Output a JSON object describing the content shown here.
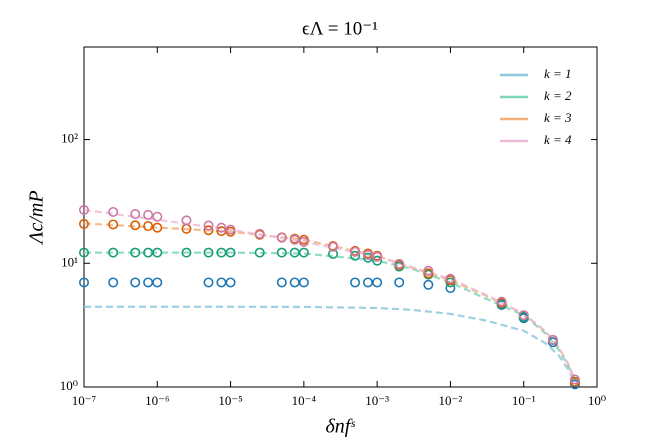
{
  "chart_data": {
    "type": "scatter",
    "title": "ϵΛ = 10⁻¹",
    "xlabel": "δnfˢ",
    "ylabel": "Λc/mP",
    "xscale": "log",
    "yscale": "log",
    "xlim": [
      1e-07,
      1
    ],
    "ylim": [
      1,
      560
    ],
    "xticks": [
      {
        "value": 1e-07,
        "label": "10⁻⁷"
      },
      {
        "value": 1e-06,
        "label": "10⁻⁶"
      },
      {
        "value": 1e-05,
        "label": "10⁻⁵"
      },
      {
        "value": 0.0001,
        "label": "10⁻⁴"
      },
      {
        "value": 0.001,
        "label": "10⁻³"
      },
      {
        "value": 0.01,
        "label": "10⁻²"
      },
      {
        "value": 0.1,
        "label": "10⁻¹"
      },
      {
        "value": 1,
        "label": "10⁰"
      }
    ],
    "yticks": [
      {
        "value": 1,
        "label": "10⁰"
      },
      {
        "value": 10,
        "label": "10¹"
      },
      {
        "value": 100,
        "label": "10²"
      }
    ],
    "legend": "upper right",
    "x": [
      1e-07,
      2.5e-07,
      5e-07,
      7.5e-07,
      1e-06,
      2.5e-06,
      5e-06,
      7.5e-06,
      1e-05,
      2.5e-05,
      5e-05,
      7.5e-05,
      0.0001,
      0.00025,
      0.0005,
      0.00075,
      0.001,
      0.002,
      0.005,
      0.01,
      0.05,
      0.1,
      0.25,
      0.5
    ],
    "line_x": [
      1e-07,
      1e-05,
      0.0001,
      0.001,
      0.003,
      0.01,
      0.03,
      0.1,
      0.2,
      0.3,
      0.4,
      0.5,
      0.55
    ],
    "series": [
      {
        "name": "k = 1",
        "color": "#8ec8dc",
        "marker_color": "#1f78b4",
        "values": [
          7.0,
          7.0,
          7.0,
          7.0,
          7.0,
          null,
          7.0,
          7.0,
          7.0,
          null,
          7.0,
          7.0,
          7.0,
          null,
          7.0,
          7.0,
          7.0,
          7.0,
          6.7,
          6.3,
          4.6,
          3.6,
          2.3,
          1.05
        ],
        "line_values": [
          4.45,
          4.45,
          4.44,
          4.35,
          4.2,
          3.9,
          3.45,
          2.85,
          2.25,
          1.8,
          1.4,
          1.1,
          1.0
        ]
      },
      {
        "name": "k = 2",
        "color": "#7fd6b8",
        "marker_color": "#1a9e77",
        "values": [
          12.2,
          12.2,
          12.2,
          12.2,
          12.2,
          12.2,
          12.2,
          12.2,
          12.2,
          12.2,
          12.2,
          12.2,
          12.2,
          11.9,
          11.5,
          11.1,
          10.5,
          9.4,
          8.1,
          7.0,
          4.7,
          3.7,
          2.4,
          1.1
        ],
        "line_values": [
          12.2,
          12.2,
          12.0,
          10.5,
          9.0,
          7.0,
          5.2,
          3.8,
          2.7,
          2.0,
          1.5,
          1.15,
          1.0
        ]
      },
      {
        "name": "k = 3",
        "color": "#f2b07a",
        "marker_color": "#d95f02",
        "values": [
          20.8,
          20.6,
          20.3,
          20.0,
          19.4,
          19.0,
          18.5,
          18.2,
          18.0,
          17.0,
          16.2,
          15.8,
          15.5,
          13.8,
          12.6,
          12.0,
          11.5,
          9.7,
          8.3,
          7.3,
          4.8,
          3.8,
          2.4,
          1.1
        ],
        "line_values": [
          21,
          18,
          15.5,
          11.5,
          9.2,
          7.3,
          5.5,
          3.9,
          2.8,
          2.1,
          1.55,
          1.15,
          1.0
        ]
      },
      {
        "name": "k = 4",
        "color": "#ecbcd8",
        "marker_color": "#cc79a7",
        "values": [
          27,
          26,
          25,
          24.6,
          23.8,
          22.2,
          20.2,
          19.4,
          18.7,
          17.3,
          16.1,
          15.5,
          14.9,
          13.6,
          12.4,
          11.7,
          11.3,
          9.9,
          8.7,
          7.5,
          4.9,
          3.8,
          2.4,
          1.15
        ],
        "line_values": [
          27,
          18.7,
          14.9,
          11.3,
          9.3,
          7.5,
          5.6,
          3.9,
          2.8,
          2.1,
          1.55,
          1.15,
          1.0
        ]
      }
    ]
  }
}
